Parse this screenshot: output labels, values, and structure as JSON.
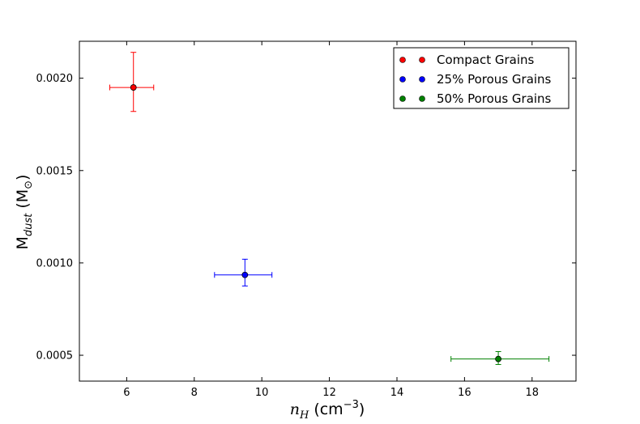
{
  "chart_data": {
    "type": "scatter",
    "title": "",
    "xlabel": {
      "main": "n",
      "sub": "H",
      "unit_open": " (cm",
      "unit_sup": "−3",
      "unit_close": ")"
    },
    "ylabel": {
      "main": "M",
      "sub": "dust",
      "unit": " (M",
      "unit_sym": "⊙",
      "unit_close": ")"
    },
    "xlim": [
      4.6,
      19.3
    ],
    "ylim": [
      0.00036,
      0.0022
    ],
    "xticks": [
      6,
      8,
      10,
      12,
      14,
      16,
      18
    ],
    "yticks": [
      0.0005,
      0.001,
      0.0015,
      0.002
    ],
    "xtick_labels": [
      "6",
      "8",
      "10",
      "12",
      "14",
      "16",
      "18"
    ],
    "ytick_labels": [
      "0.0005",
      "0.0010",
      "0.0015",
      "0.0020"
    ],
    "grid": false,
    "legend_position": "upper right",
    "series": [
      {
        "name": "Compact Grains",
        "color": "#ff0000",
        "x": 6.2,
        "y": 0.00195,
        "x_err": [
          0.7,
          0.6
        ],
        "y_err": [
          0.00013,
          0.00019
        ]
      },
      {
        "name": "25% Porous Grains",
        "color": "#0000ff",
        "x": 9.5,
        "y": 0.000935,
        "x_err": [
          0.9,
          0.8
        ],
        "y_err": [
          6e-05,
          8.5e-05
        ]
      },
      {
        "name": "50% Porous Grains",
        "color": "#008000",
        "x": 17.0,
        "y": 0.00048,
        "x_err": [
          1.4,
          1.5
        ],
        "y_err": [
          3e-05,
          4e-05
        ]
      }
    ]
  }
}
